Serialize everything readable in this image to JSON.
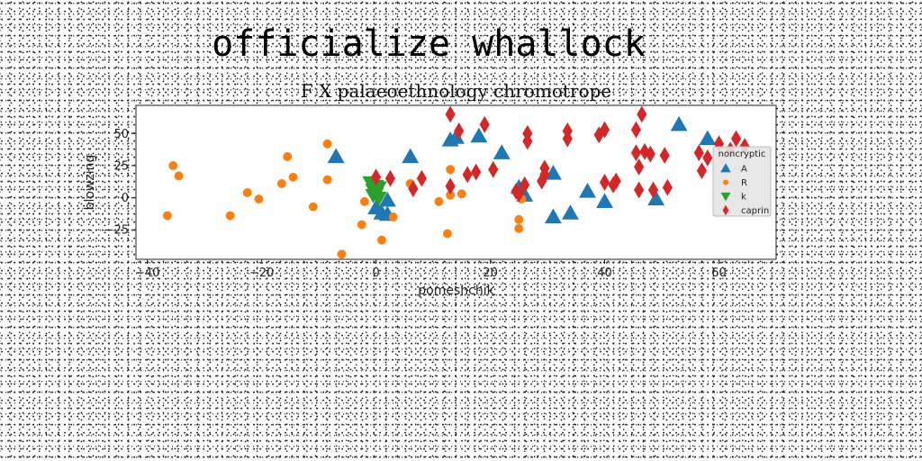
{
  "figure": {
    "suptitle": "officialize whallock"
  },
  "chart_data": {
    "type": "scatter",
    "title": "F X palaeoethnology chromotrope",
    "xlabel": "pomeshchik",
    "ylabel": "blowzing",
    "xlim": [
      -42,
      70
    ],
    "ylim": [
      -48,
      72
    ],
    "xticks": [
      -40,
      -20,
      0,
      20,
      40,
      60
    ],
    "yticks": [
      -25,
      0,
      25,
      50
    ],
    "grid": false,
    "legend": {
      "title": "noncryptic",
      "position": "right"
    },
    "series": [
      {
        "name": "A",
        "marker": "triangle-up",
        "color": "#1f77b4",
        "points": [
          [
            -7,
            32
          ],
          [
            0,
            -8
          ],
          [
            1,
            -12
          ],
          [
            2,
            -13
          ],
          [
            2,
            -2
          ],
          [
            6,
            32
          ],
          [
            13,
            45
          ],
          [
            14,
            47
          ],
          [
            18,
            48
          ],
          [
            22,
            35
          ],
          [
            25,
            8
          ],
          [
            26,
            2
          ],
          [
            31,
            19
          ],
          [
            31,
            -15
          ],
          [
            34,
            -12
          ],
          [
            37,
            5
          ],
          [
            40,
            -3
          ],
          [
            49,
            -1
          ],
          [
            53,
            57
          ],
          [
            58,
            46
          ]
        ]
      },
      {
        "name": "R",
        "marker": "circle",
        "color": "#ff7f0e",
        "points": [
          [
            -36.5,
            -14
          ],
          [
            -35.5,
            25
          ],
          [
            -34.5,
            17
          ],
          [
            -25.5,
            -14
          ],
          [
            -22.5,
            4
          ],
          [
            -20.5,
            -1
          ],
          [
            -16.5,
            11
          ],
          [
            -15.5,
            32
          ],
          [
            -14.5,
            16
          ],
          [
            -11,
            -7
          ],
          [
            -8.5,
            42
          ],
          [
            -8.5,
            14
          ],
          [
            -6,
            -44
          ],
          [
            -2.5,
            -21
          ],
          [
            -2,
            -3
          ],
          [
            1,
            -33
          ],
          [
            3,
            -15
          ],
          [
            6,
            11
          ],
          [
            11,
            -3
          ],
          [
            12.5,
            -28
          ],
          [
            13,
            22
          ],
          [
            13,
            2
          ],
          [
            15,
            3
          ],
          [
            25,
            -24
          ],
          [
            25,
            -17
          ],
          [
            25.5,
            -1
          ]
        ]
      },
      {
        "name": "k",
        "marker": "triangle-down",
        "color": "#2ca02c",
        "points": [
          [
            -1,
            12
          ],
          [
            -0.5,
            6
          ],
          [
            0,
            3
          ],
          [
            0.5,
            0
          ],
          [
            0,
            9
          ],
          [
            -0.5,
            2
          ],
          [
            0.5,
            8
          ],
          [
            0,
            5
          ]
        ]
      },
      {
        "name": "caprin",
        "marker": "diamond",
        "color": "#d62728",
        "points": [
          [
            0,
            16
          ],
          [
            2.5,
            15
          ],
          [
            6.5,
            7
          ],
          [
            8,
            15
          ],
          [
            13,
            65
          ],
          [
            13,
            9
          ],
          [
            14.5,
            52
          ],
          [
            16,
            18
          ],
          [
            17.5,
            20
          ],
          [
            19,
            57
          ],
          [
            20.5,
            22
          ],
          [
            24.5,
            5
          ],
          [
            25,
            3
          ],
          [
            26,
            10
          ],
          [
            26.5,
            50
          ],
          [
            26.5,
            44
          ],
          [
            29,
            13
          ],
          [
            29.5,
            18
          ],
          [
            29.5,
            23
          ],
          [
            33.5,
            52
          ],
          [
            33.5,
            46
          ],
          [
            39,
            49
          ],
          [
            40,
            53
          ],
          [
            40,
            12
          ],
          [
            41.5,
            10
          ],
          [
            42,
            13
          ],
          [
            45.5,
            53
          ],
          [
            45.5,
            35
          ],
          [
            46,
            24
          ],
          [
            46,
            6
          ],
          [
            46.5,
            65
          ],
          [
            47,
            36
          ],
          [
            48,
            34
          ],
          [
            48.5,
            6
          ],
          [
            50.5,
            33
          ],
          [
            51,
            8
          ],
          [
            56.5,
            35
          ],
          [
            57,
            21
          ],
          [
            58,
            31
          ],
          [
            60,
            42
          ],
          [
            62,
            37
          ],
          [
            63,
            46
          ],
          [
            64.5,
            40
          ]
        ]
      }
    ]
  }
}
